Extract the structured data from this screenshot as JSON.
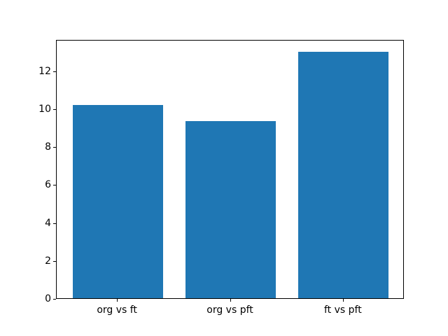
{
  "figure": {
    "background_color": "#ffffff",
    "bar_color": "#1f77b4",
    "spine_color": "#000000",
    "tick_color": "#000000"
  },
  "chart_data": {
    "type": "bar",
    "title": "",
    "xlabel": "",
    "ylabel": "",
    "categories": [
      "org vs ft",
      "org vs pft",
      "ft vs pft"
    ],
    "values": [
      10.2,
      9.35,
      13.0
    ],
    "yticks": [
      0,
      2,
      4,
      6,
      8,
      10,
      12
    ],
    "ytick_labels": [
      "0",
      "2",
      "4",
      "6",
      "8",
      "10",
      "12"
    ],
    "ylim": [
      0,
      13.65
    ],
    "xlim": [
      -0.54,
      2.54
    ],
    "bar_width_data_units": 0.8,
    "grid": false,
    "legend": null
  }
}
